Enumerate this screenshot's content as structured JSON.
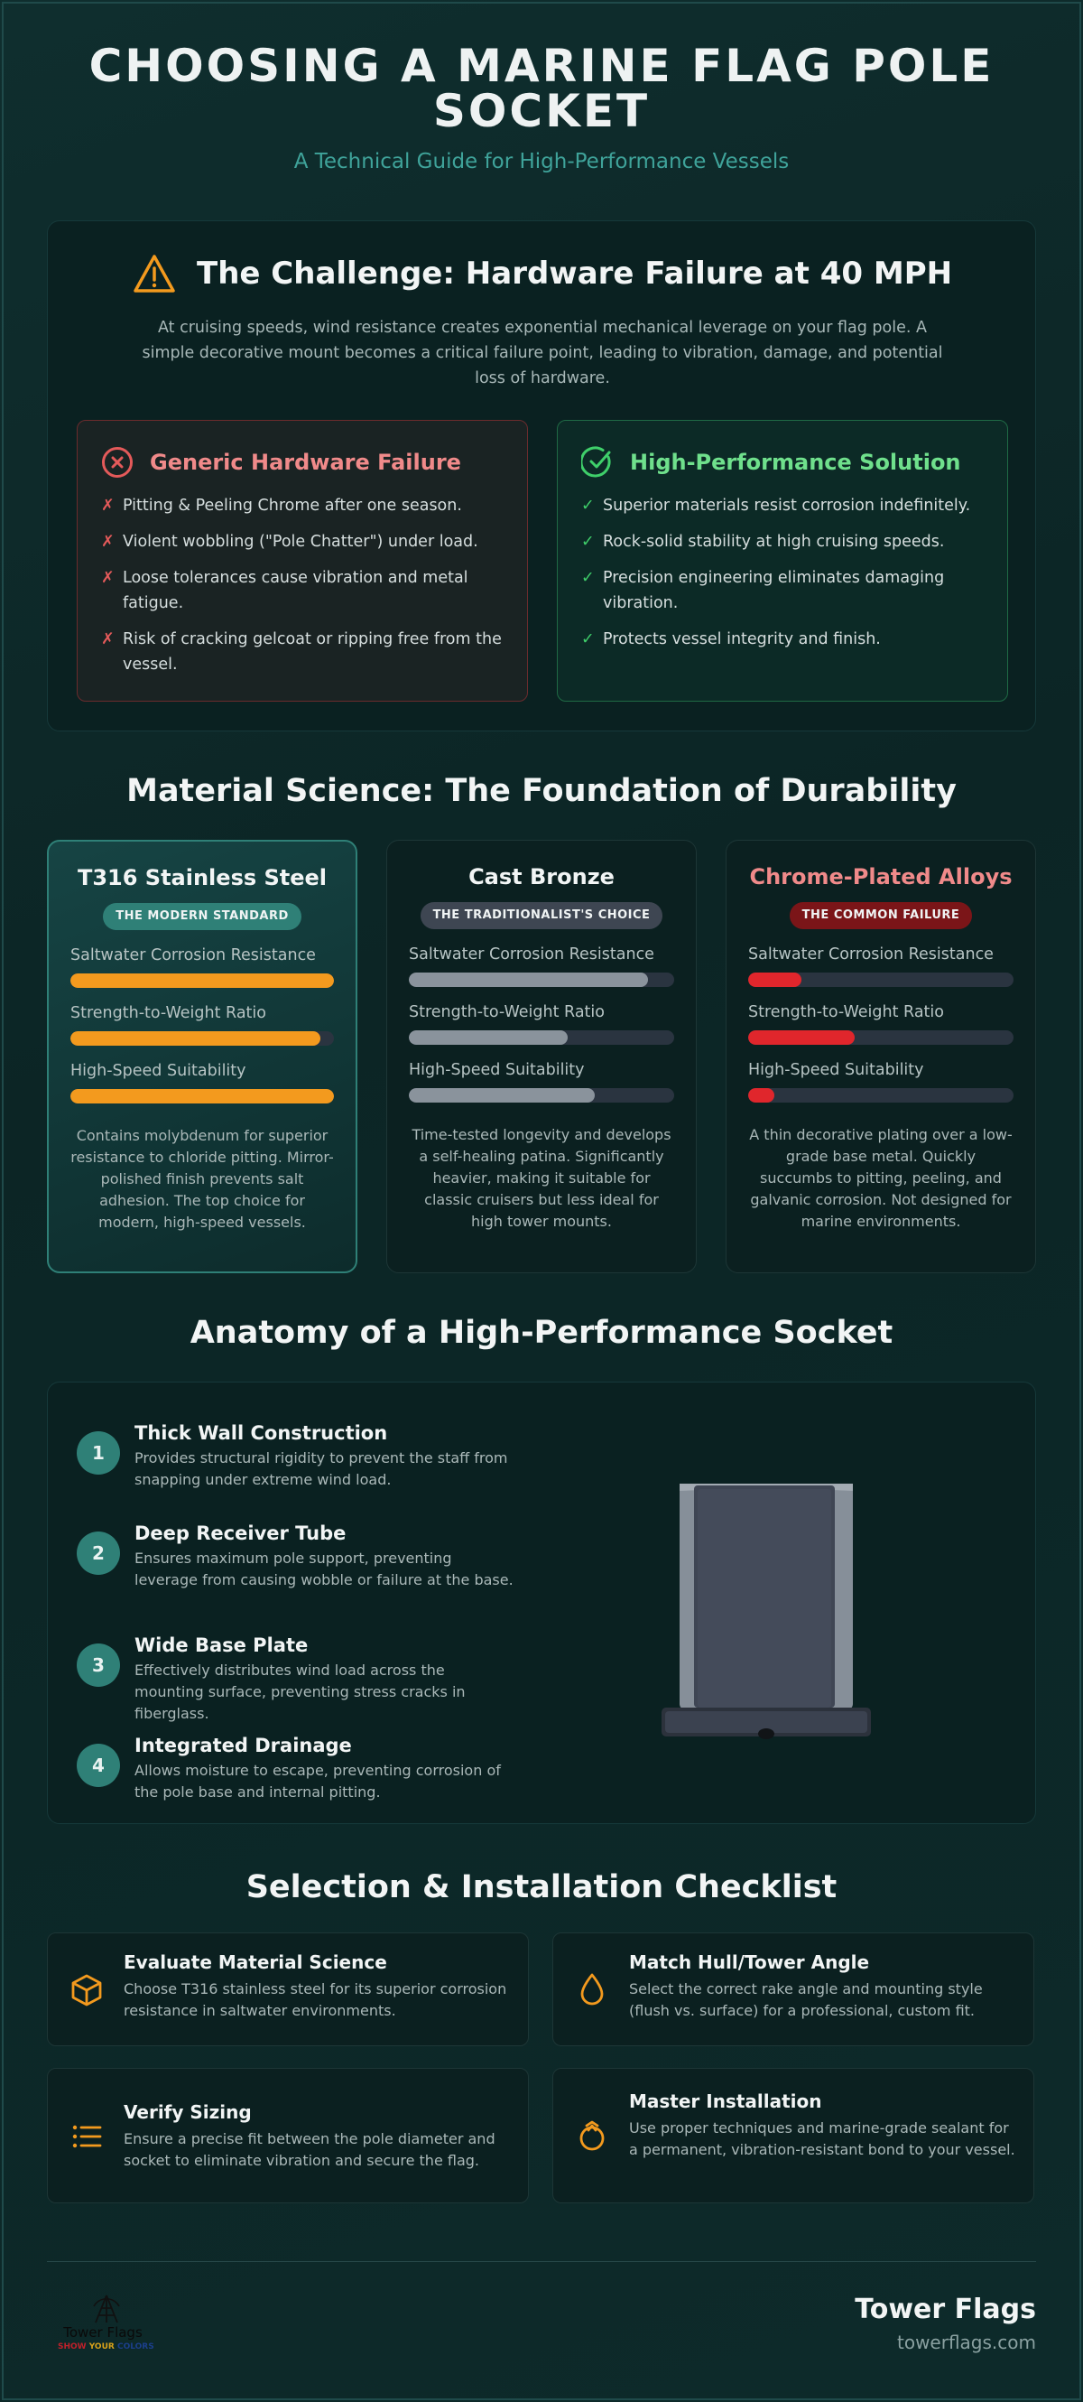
{
  "header": {
    "title": "CHOOSING A MARINE FLAG POLE SOCKET",
    "subtitle": "A Technical Guide for High-Performance Vessels"
  },
  "challenge": {
    "icon": "warning-icon",
    "title": "The Challenge: Hardware Failure at 40 MPH",
    "description": "At cruising speeds, wind resistance creates exponential mechanical leverage on your flag pole. A simple decorative mount becomes a critical failure point, leading to vibration, damage, and potential loss of hardware.",
    "generic": {
      "icon": "x-circle-icon",
      "title": "Generic Hardware Failure",
      "marker": "✗",
      "items": [
        "Pitting & Peeling Chrome after one season.",
        "Violent wobbling (\"Pole Chatter\") under load.",
        "Loose tolerances cause vibration and metal fatigue.",
        "Risk of cracking gelcoat or ripping free from the vessel."
      ]
    },
    "solution": {
      "icon": "check-circle-icon",
      "title": "High-Performance Solution",
      "marker": "✓",
      "items": [
        "Superior materials resist corrosion indefinitely.",
        "Rock-solid stability at high cruising speeds.",
        "Precision engineering eliminates damaging vibration.",
        "Protects vessel integrity and finish."
      ]
    }
  },
  "materials": {
    "heading": "Material Science: The Foundation of Durability",
    "cards": [
      {
        "title": "T316 Stainless Steel",
        "badge": "THE MODERN STANDARD",
        "bar_color": "#f39a1e",
        "metrics": [
          {
            "label": "Saltwater Corrosion Resistance",
            "value": 1.0
          },
          {
            "label": "Strength-to-Weight Ratio",
            "value": 0.95
          },
          {
            "label": "High-Speed Suitability",
            "value": 1.0
          }
        ],
        "description": "Contains molybdenum for superior resistance to chloride pitting. Mirror-polished finish prevents salt adhesion. The top choice for modern, high-speed vessels."
      },
      {
        "title": "Cast Bronze",
        "badge": "THE TRADITIONALIST'S CHOICE",
        "bar_color": "#8a939c",
        "metrics": [
          {
            "label": "Saltwater Corrosion Resistance",
            "value": 0.9
          },
          {
            "label": "Strength-to-Weight Ratio",
            "value": 0.6
          },
          {
            "label": "High-Speed Suitability",
            "value": 0.7
          }
        ],
        "description": "Time-tested longevity and develops a self-healing patina. Significantly heavier, making it suitable for classic cruisers but less ideal for high tower mounts."
      },
      {
        "title": "Chrome-Plated Alloys",
        "badge": "THE COMMON FAILURE",
        "bar_color": "#e0262c",
        "metrics": [
          {
            "label": "Saltwater Corrosion Resistance",
            "value": 0.2
          },
          {
            "label": "Strength-to-Weight Ratio",
            "value": 0.4
          },
          {
            "label": "High-Speed Suitability",
            "value": 0.1
          }
        ],
        "description": "A thin decorative plating over a low-grade base metal. Quickly succumbs to pitting, peeling, and galvanic corrosion. Not designed for marine environments."
      }
    ]
  },
  "anatomy": {
    "heading": "Anatomy of a High-Performance Socket",
    "items": [
      {
        "number": "1",
        "title": "Thick Wall Construction",
        "description": "Provides structural rigidity to prevent the staff from snapping under extreme wind load."
      },
      {
        "number": "2",
        "title": "Deep Receiver Tube",
        "description": "Ensures maximum pole support, preventing leverage from causing wobble or failure at the base."
      },
      {
        "number": "3",
        "title": "Wide Base Plate",
        "description": "Effectively distributes wind load across the mounting surface, preventing stress cracks in fiberglass."
      },
      {
        "number": "4",
        "title": "Integrated Drainage",
        "description": "Allows moisture to escape, preventing corrosion of the pole base and internal pitting."
      }
    ]
  },
  "checklist": {
    "heading": "Selection & Installation Checklist",
    "items": [
      {
        "icon": "cube-icon",
        "title": "Evaluate Material Science",
        "description": "Choose T316 stainless steel for its superior corrosion resistance in saltwater environments."
      },
      {
        "icon": "droplet-icon",
        "title": "Match Hull/Tower Angle",
        "description": "Select the correct rake angle and mounting style (flush vs. surface) for a professional, custom fit."
      },
      {
        "icon": "list-icon",
        "title": "Verify Sizing",
        "description": "Ensure a precise fit between the pole diameter and socket to eliminate vibration and secure the flag."
      },
      {
        "icon": "wrench-icon",
        "title": "Master Installation",
        "description": "Use proper techniques and marine-grade sealant for a permanent, vibration-resistant bond to your vessel."
      }
    ],
    "accent": "#f39a1e"
  },
  "footer": {
    "brand": "Tower Flags",
    "site": "towerflags.com",
    "logo_name": "Tower Flags",
    "logo_tagline": "SHOW YOUR COLORS"
  }
}
